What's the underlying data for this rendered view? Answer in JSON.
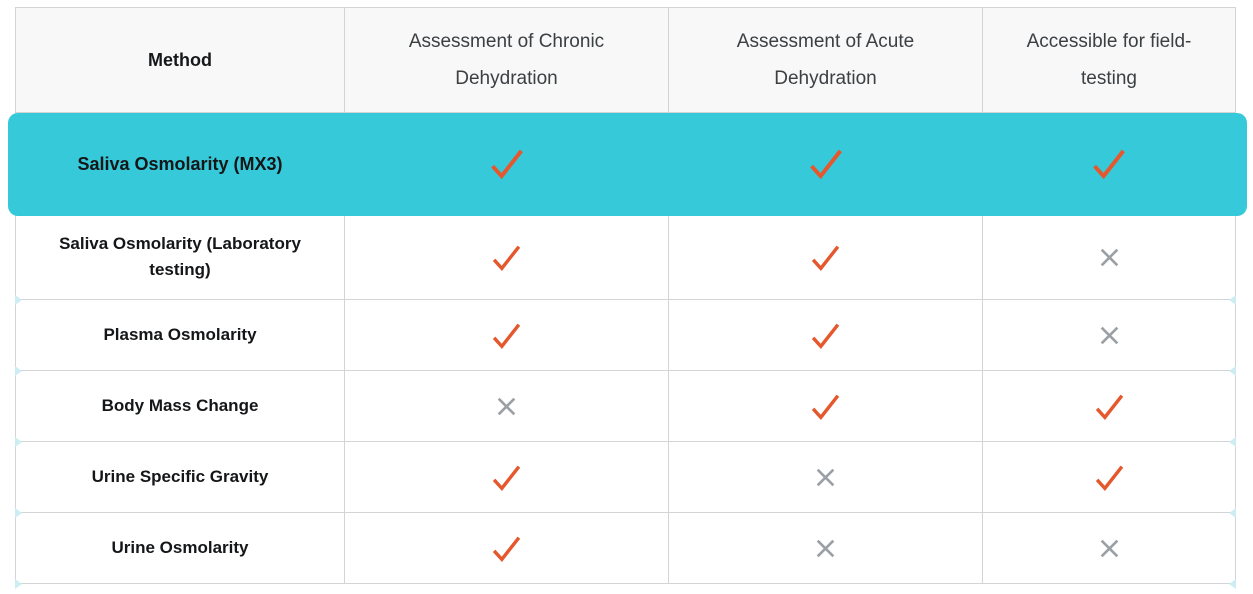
{
  "chart_data": {
    "type": "table",
    "columns": [
      "Method",
      "Assessment of Chronic Dehydration",
      "Assessment of Acute Dehydration",
      "Accessible for field-testing"
    ],
    "rows": [
      {
        "method": "Saliva Osmolarity (MX3)",
        "values": [
          "check",
          "check",
          "check"
        ],
        "highlighted": true
      },
      {
        "method": "Saliva Osmolarity (Laboratory testing)",
        "values": [
          "check",
          "check",
          "cross"
        ],
        "highlighted": false
      },
      {
        "method": "Plasma Osmolarity",
        "values": [
          "check",
          "check",
          "cross"
        ],
        "highlighted": false
      },
      {
        "method": "Body Mass Change",
        "values": [
          "cross",
          "check",
          "check"
        ],
        "highlighted": false
      },
      {
        "method": "Urine Specific Gravity",
        "values": [
          "check",
          "cross",
          "check"
        ],
        "highlighted": false
      },
      {
        "method": "Urine Osmolarity",
        "values": [
          "check",
          "cross",
          "cross"
        ],
        "highlighted": false
      }
    ],
    "icons": {
      "check": "check-icon",
      "cross": "cross-icon"
    },
    "layout_hints": {
      "highlighted_row": "Saliva Osmolarity (MX3)",
      "grid": "on",
      "legend": "none"
    }
  },
  "colors": {
    "highlight": "#36c9d9",
    "check": "#e5582d",
    "cross": "#9aa0a5",
    "border": "#d2d4d5",
    "header_bg": "#f8f8f8",
    "header_text": "#3c4043",
    "label_text": "#151618"
  }
}
